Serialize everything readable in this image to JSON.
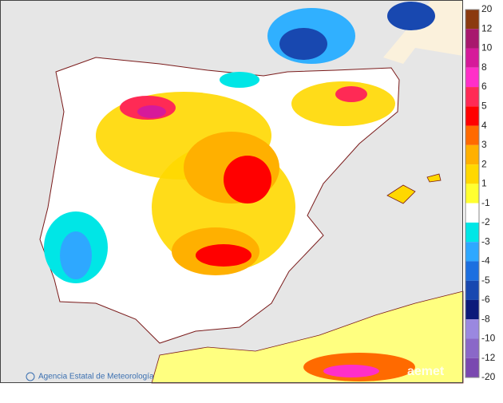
{
  "legend": {
    "labels": [
      "20",
      "12",
      "10",
      "8",
      "6",
      "5",
      "4",
      "3",
      "2",
      "1",
      "-1",
      "-2",
      "-3",
      "-4",
      "-5",
      "-6",
      "-8",
      "-10",
      "-12",
      "-20"
    ],
    "colors": [
      "#8b3a0f",
      "#a8186e",
      "#d61a9a",
      "#ff2fc8",
      "#ff2a55",
      "#ff0000",
      "#ff6a00",
      "#ffb000",
      "#ffd800",
      "#ffff30",
      "#ffffff",
      "#00e6e6",
      "#2ea8ff",
      "#1c6fe0",
      "#1848b0",
      "#0c1a7a",
      "#9a88e0",
      "#8a68c8",
      "#7a48b0",
      "#6a2898"
    ]
  },
  "credit": "Agencia Estatal de Meteorología",
  "logo": "aemet"
}
